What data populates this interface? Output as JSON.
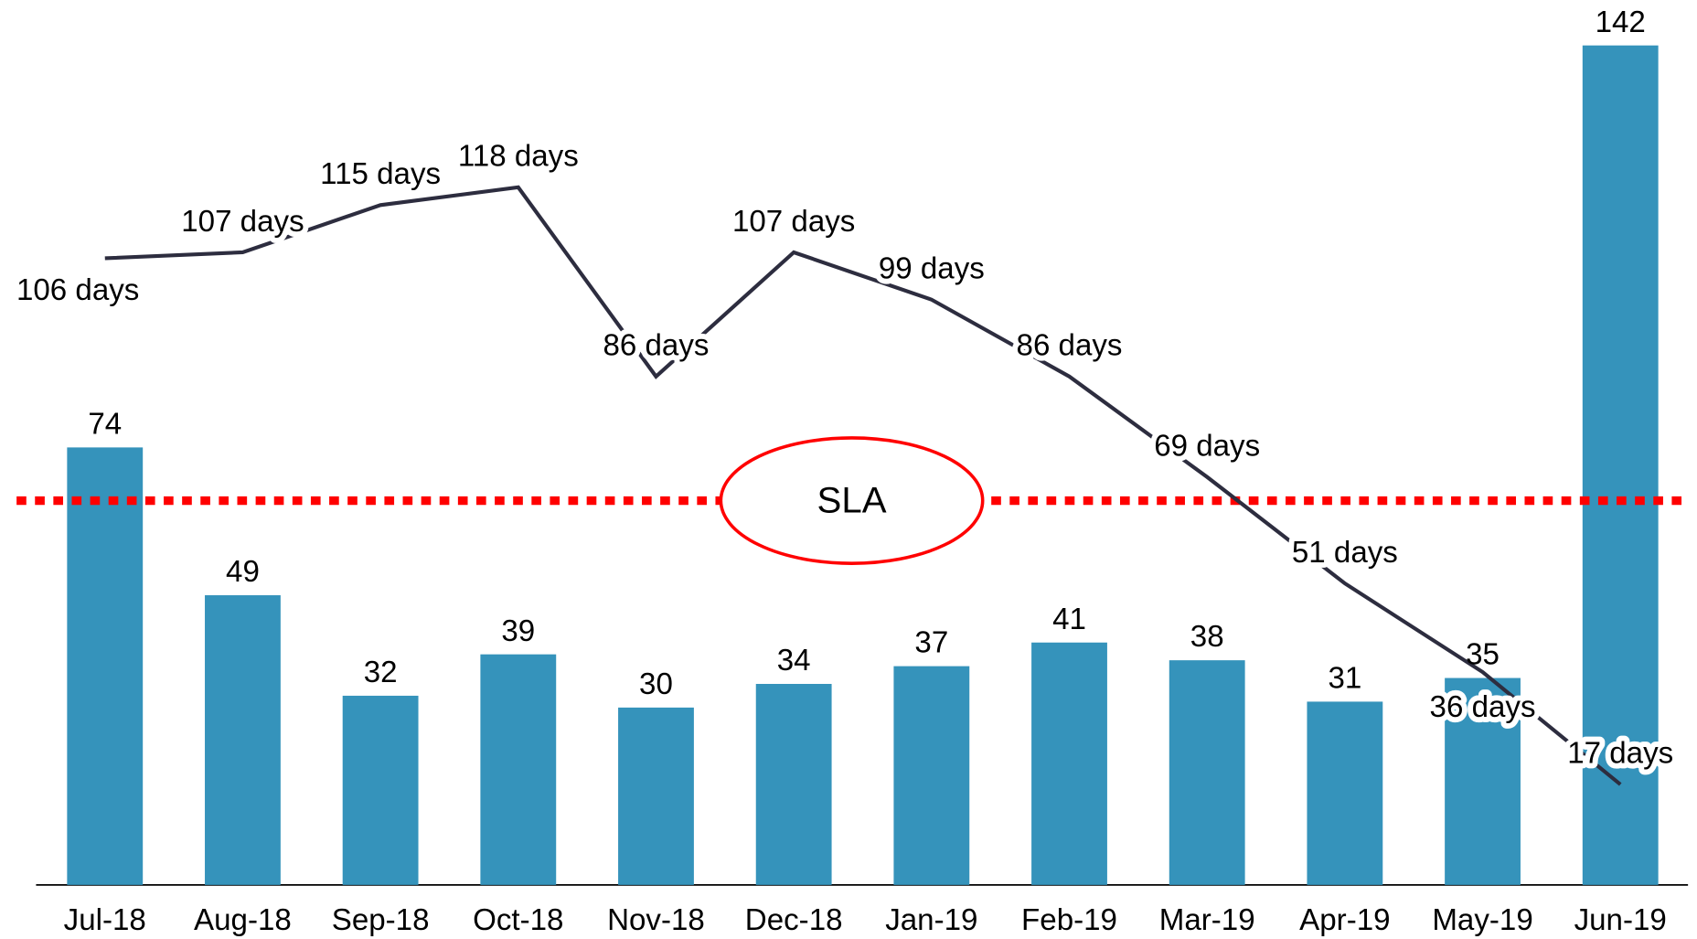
{
  "chart_data": {
    "type": "bar",
    "categories": [
      "Jul-18",
      "Aug-18",
      "Sep-18",
      "Oct-18",
      "Nov-18",
      "Dec-18",
      "Jan-19",
      "Feb-19",
      "Mar-19",
      "Apr-19",
      "May-19",
      "Jun-19"
    ],
    "series": [
      {
        "type": "bar",
        "color": "#3593bb",
        "values": [
          74,
          49,
          32,
          39,
          30,
          34,
          37,
          41,
          38,
          31,
          35,
          142
        ]
      },
      {
        "type": "line",
        "color": "#2d2d3f",
        "values": [
          106,
          107,
          115,
          118,
          86,
          107,
          99,
          86,
          69,
          51,
          36,
          17
        ],
        "value_labels": [
          "106 days",
          "107 days",
          "115 days",
          "118 days",
          "86 days",
          "107 days",
          "99 days",
          "86 days",
          "69 days",
          "51 days",
          "36 days",
          "17 days"
        ]
      }
    ],
    "ylim": [
      0,
      142
    ],
    "reference_line": {
      "value": 65,
      "label": "SLA",
      "color": "#ff0000"
    }
  }
}
